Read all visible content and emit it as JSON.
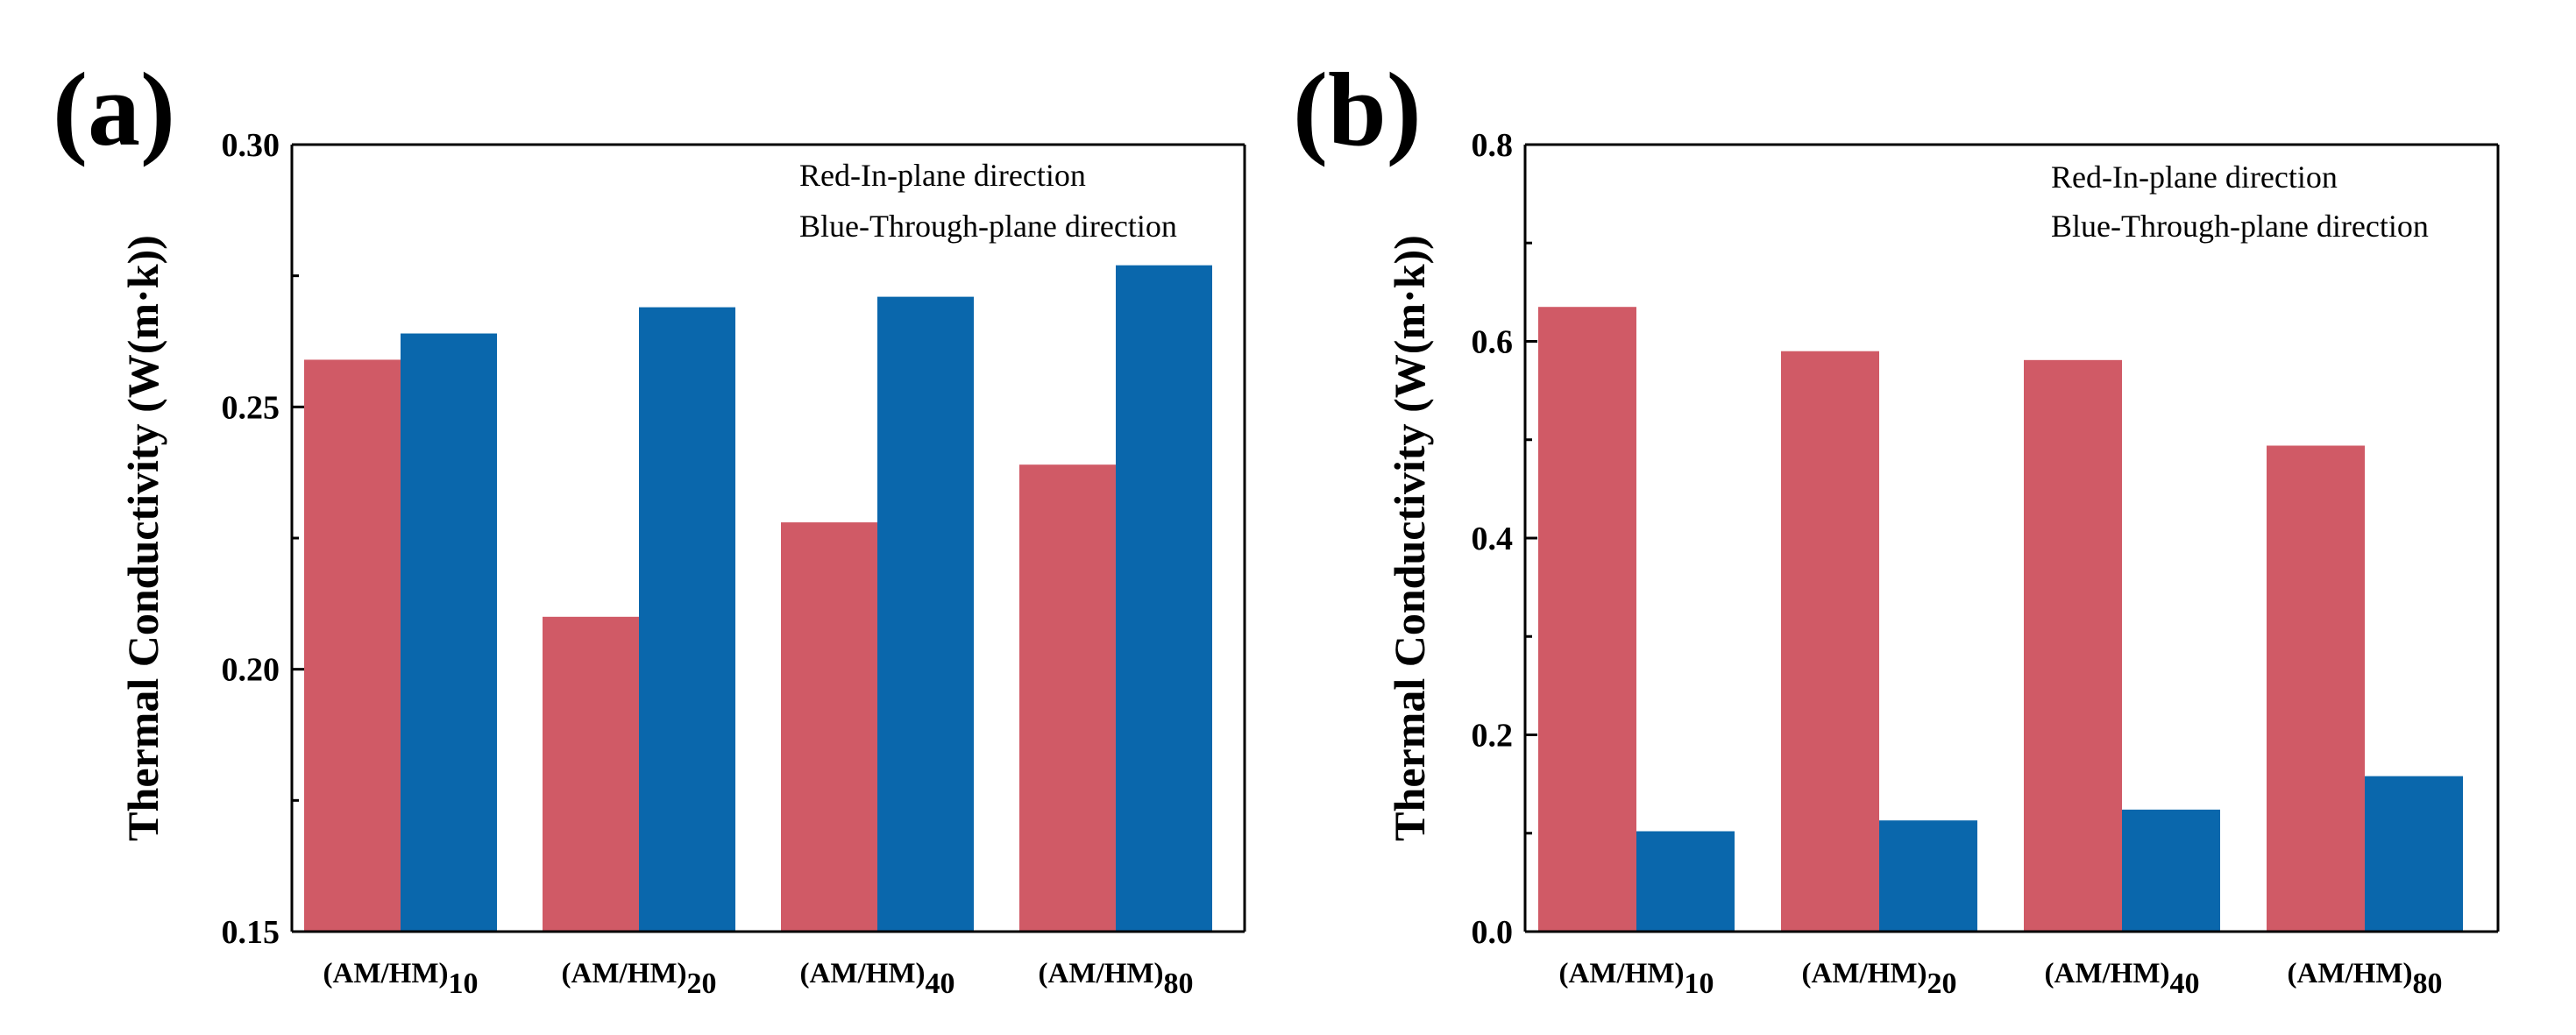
{
  "colors": {
    "in_plane": "#d05a66",
    "through_plane": "#0a67ac"
  },
  "chart_data": [
    {
      "type": "bar",
      "panel_label": "(a)",
      "title": "",
      "xlabel": "",
      "ylabel": "Thermal Conductivity (W(m·k))",
      "ylim": [
        0.15,
        0.3
      ],
      "yticks": [
        "0.15",
        "0.20",
        "0.25",
        "0.30"
      ],
      "categories": [
        {
          "base": "(AM/HM)",
          "sub": "10"
        },
        {
          "base": "(AM/HM)",
          "sub": "20"
        },
        {
          "base": "(AM/HM)",
          "sub": "40"
        },
        {
          "base": "(AM/HM)",
          "sub": "80"
        }
      ],
      "legend": [
        "Red-In-plane direction",
        "Blue-Through-plane direction"
      ],
      "series": [
        {
          "name": "In-plane direction",
          "color": "#d05a66",
          "values": [
            0.259,
            0.21,
            0.228,
            0.239
          ]
        },
        {
          "name": "Through-plane direction",
          "color": "#0a67ac",
          "values": [
            0.264,
            0.269,
            0.271,
            0.277
          ]
        }
      ]
    },
    {
      "type": "bar",
      "panel_label": "(b)",
      "title": "",
      "xlabel": "",
      "ylabel": "Thermal Conductivity (W(m·k))",
      "ylim": [
        0.0,
        0.8
      ],
      "yticks": [
        "0.0",
        "0.2",
        "0.4",
        "0.6",
        "0.8"
      ],
      "categories": [
        {
          "base": "(AM/HM)",
          "sub": "10"
        },
        {
          "base": "(AM/HM)",
          "sub": "20"
        },
        {
          "base": "(AM/HM)",
          "sub": "40"
        },
        {
          "base": "(AM/HM)",
          "sub": "80"
        }
      ],
      "legend": [
        "Red-In-plane direction",
        "Blue-Through-plane direction"
      ],
      "series": [
        {
          "name": "In-plane direction",
          "color": "#d05a66",
          "values": [
            0.635,
            0.59,
            0.581,
            0.494
          ]
        },
        {
          "name": "Through-plane direction",
          "color": "#0a67ac",
          "values": [
            0.102,
            0.113,
            0.124,
            0.158
          ]
        }
      ]
    }
  ]
}
